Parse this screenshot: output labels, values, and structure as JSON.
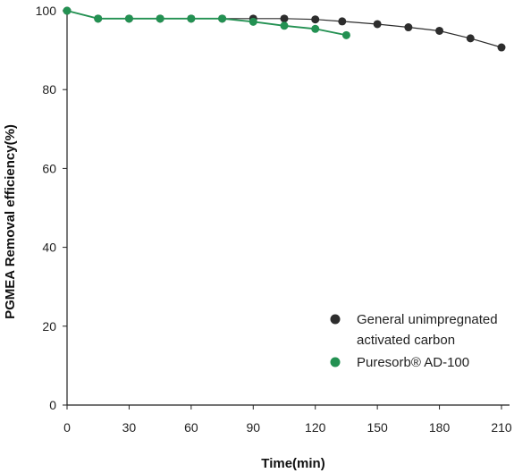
{
  "chart_data": {
    "type": "line",
    "title": "",
    "xlabel": "Time(min)",
    "ylabel": "PGMEA Removal efficiency(%)",
    "xlim": [
      0,
      210
    ],
    "ylim": [
      0,
      100
    ],
    "xticks": [
      "0",
      "30",
      "60",
      "90",
      "120",
      "150",
      "180",
      "210"
    ],
    "yticks": [
      "0",
      "20",
      "40",
      "60",
      "80",
      "100"
    ],
    "grid": false,
    "legend_position": "bottom-right",
    "series": [
      {
        "name_lines": [
          "General unimpregnated",
          "activated carbon"
        ],
        "color": "#2d2d2d",
        "x": [
          0,
          15,
          30,
          45,
          60,
          75,
          90,
          105,
          120,
          133,
          150,
          165,
          180,
          195,
          210
        ],
        "y": [
          100,
          98,
          98,
          98,
          98,
          98,
          98,
          98,
          97.8,
          97.3,
          96.6,
          95.8,
          94.9,
          93.0,
          90.7
        ]
      },
      {
        "name": "Puresorb® AD-100",
        "color": "#239152",
        "x": [
          0,
          15,
          30,
          45,
          60,
          75,
          90,
          105,
          120,
          135
        ],
        "y": [
          100,
          98,
          98,
          98,
          98,
          98,
          97.2,
          96.2,
          95.4,
          93.8
        ]
      }
    ]
  }
}
